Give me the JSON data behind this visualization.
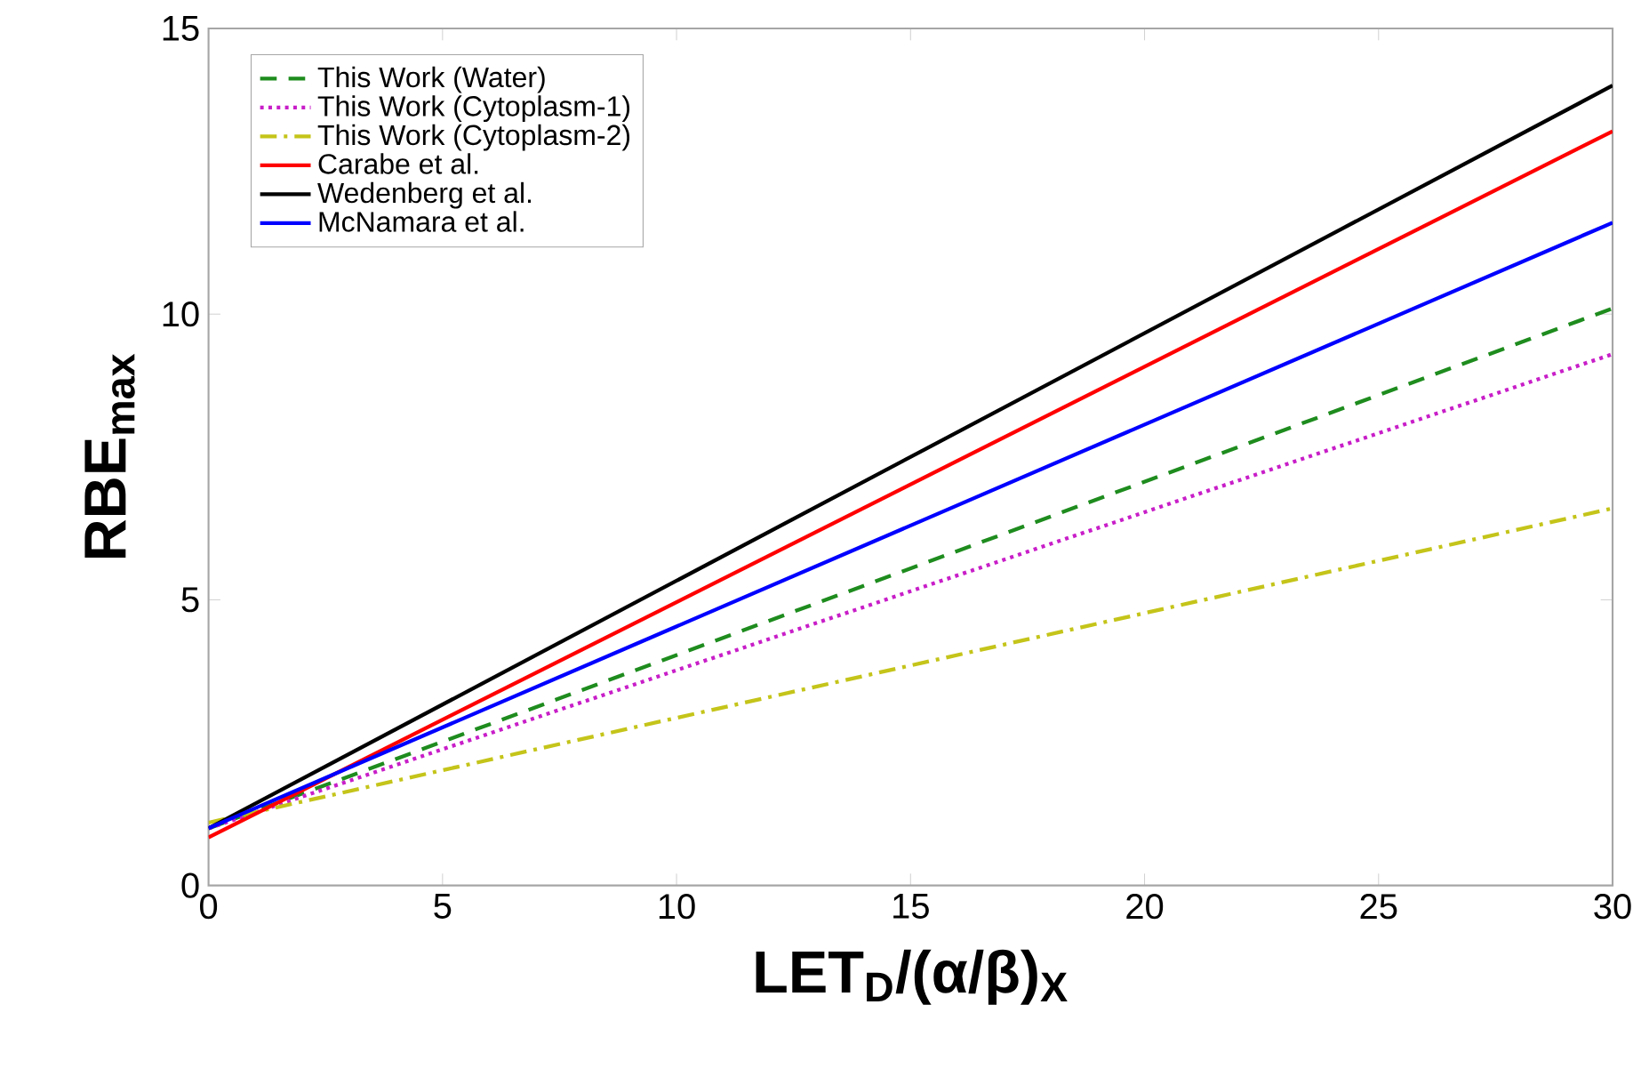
{
  "chart_data": {
    "type": "line",
    "xlabel": "**LET$_{D}$/(α/β)$_{X}$**",
    "ylabel": "**RBE$_{max}$**",
    "x": [
      0,
      30
    ],
    "series": [
      {
        "name": "This Work (Water)",
        "color": "#1e8c1e",
        "line_style": "dashed",
        "values": [
          1.0,
          10.1
        ]
      },
      {
        "name": "This Work (Cytoplasm-1)",
        "color": "#c81ec8",
        "line_style": "dotted",
        "values": [
          1.0,
          9.3
        ]
      },
      {
        "name": "This Work (Cytoplasm-2)",
        "color": "#c4c41a",
        "line_style": "dashdot",
        "values": [
          1.1,
          6.6
        ]
      },
      {
        "name": "Carabe et al.",
        "color": "#ff0000",
        "line_style": "solid",
        "values": [
          0.84,
          13.2
        ]
      },
      {
        "name": "Wedenberg et al.",
        "color": "#000000",
        "line_style": "solid",
        "values": [
          1.0,
          14.0
        ]
      },
      {
        "name": "McNamara et al.",
        "color": "#0000ff",
        "line_style": "solid",
        "values": [
          1.0,
          11.6
        ]
      }
    ],
    "xlim": [
      0,
      30
    ],
    "xticks": [
      0,
      5,
      10,
      15,
      20,
      25,
      30
    ],
    "ylim": [
      0,
      15
    ],
    "yticks": [
      0,
      5,
      10,
      15
    ],
    "grid": false,
    "legend": "top left",
    "marker": "none"
  }
}
